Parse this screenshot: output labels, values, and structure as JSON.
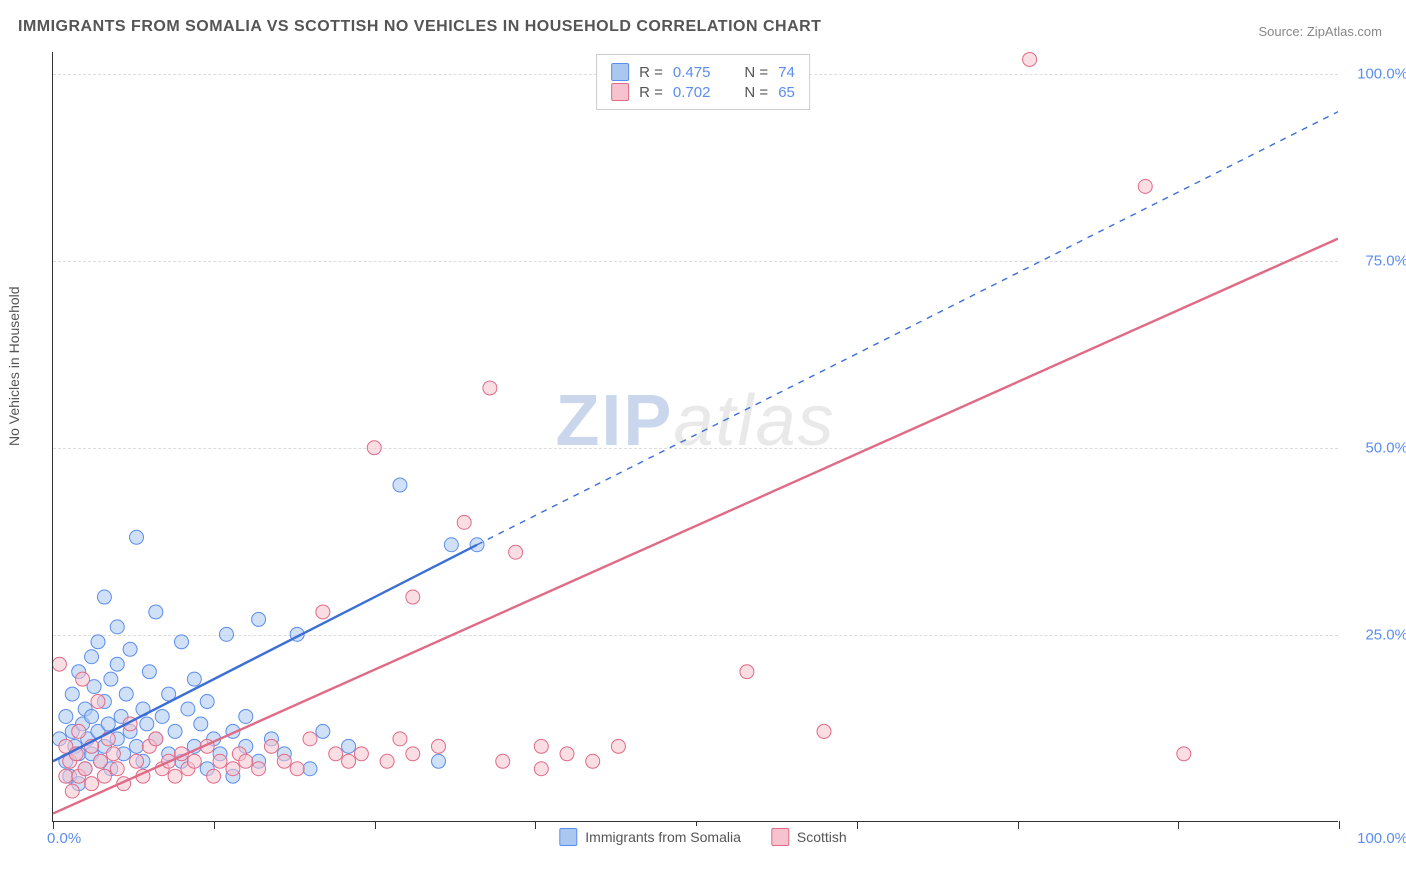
{
  "title": "IMMIGRANTS FROM SOMALIA VS SCOTTISH NO VEHICLES IN HOUSEHOLD CORRELATION CHART",
  "source_prefix": "Source: ",
  "source_name": "ZipAtlas.com",
  "ylabel": "No Vehicles in Household",
  "watermark_a": "ZIP",
  "watermark_b": "atlas",
  "chart": {
    "type": "scatter",
    "xlim": [
      0,
      100
    ],
    "ylim": [
      0,
      103
    ],
    "xticks": [
      0,
      12.5,
      25,
      37.5,
      50,
      62.5,
      75,
      87.5,
      100
    ],
    "x_tick_labels_shown": {
      "0": "0.0%",
      "100": "100.0%"
    },
    "ygrid": [
      25,
      50,
      75,
      100
    ],
    "y_tick_labels": {
      "25": "25.0%",
      "50": "50.0%",
      "75": "75.0%",
      "100": "100.0%"
    },
    "background_color": "#ffffff",
    "grid_color": "#dddddd",
    "axis_color": "#333333",
    "tick_label_color": "#5b8def",
    "label_color": "#555555",
    "marker_radius": 7,
    "marker_opacity": 0.55,
    "line_width": 2.4,
    "series": [
      {
        "id": "somalia",
        "label": "Immigrants from Somalia",
        "fill_color": "#a9c7ef",
        "stroke_color": "#5b8def",
        "line_color": "#3b6fd6",
        "R": "0.475",
        "N": "74",
        "trend": {
          "x1": 0,
          "y1": 8,
          "x2": 33,
          "y2": 37,
          "dash_x2": 100,
          "dash_y2": 95
        },
        "points": [
          [
            0.5,
            11
          ],
          [
            1,
            8
          ],
          [
            1,
            14
          ],
          [
            1.3,
            6
          ],
          [
            1.5,
            12
          ],
          [
            1.5,
            17
          ],
          [
            1.7,
            10
          ],
          [
            2,
            9
          ],
          [
            2,
            20
          ],
          [
            2,
            5
          ],
          [
            2.3,
            13
          ],
          [
            2.5,
            15
          ],
          [
            2.5,
            7
          ],
          [
            2.7,
            11
          ],
          [
            3,
            22
          ],
          [
            3,
            14
          ],
          [
            3,
            9
          ],
          [
            3.2,
            18
          ],
          [
            3.5,
            12
          ],
          [
            3.5,
            24
          ],
          [
            3.7,
            8
          ],
          [
            4,
            30
          ],
          [
            4,
            10
          ],
          [
            4,
            16
          ],
          [
            4.3,
            13
          ],
          [
            4.5,
            19
          ],
          [
            4.5,
            7
          ],
          [
            5,
            21
          ],
          [
            5,
            26
          ],
          [
            5,
            11
          ],
          [
            5.3,
            14
          ],
          [
            5.5,
            9
          ],
          [
            5.7,
            17
          ],
          [
            6,
            12
          ],
          [
            6,
            23
          ],
          [
            6.5,
            38
          ],
          [
            6.5,
            10
          ],
          [
            7,
            15
          ],
          [
            7,
            8
          ],
          [
            7.3,
            13
          ],
          [
            7.5,
            20
          ],
          [
            8,
            11
          ],
          [
            8,
            28
          ],
          [
            8.5,
            14
          ],
          [
            9,
            9
          ],
          [
            9,
            17
          ],
          [
            9.5,
            12
          ],
          [
            10,
            24
          ],
          [
            10,
            8
          ],
          [
            10.5,
            15
          ],
          [
            11,
            10
          ],
          [
            11,
            19
          ],
          [
            11.5,
            13
          ],
          [
            12,
            7
          ],
          [
            12,
            16
          ],
          [
            12.5,
            11
          ],
          [
            13,
            9
          ],
          [
            13.5,
            25
          ],
          [
            14,
            12
          ],
          [
            14,
            6
          ],
          [
            15,
            10
          ],
          [
            15,
            14
          ],
          [
            16,
            8
          ],
          [
            16,
            27
          ],
          [
            17,
            11
          ],
          [
            18,
            9
          ],
          [
            19,
            25
          ],
          [
            20,
            7
          ],
          [
            21,
            12
          ],
          [
            23,
            10
          ],
          [
            27,
            45
          ],
          [
            30,
            8
          ],
          [
            31,
            37
          ],
          [
            33,
            37
          ]
        ]
      },
      {
        "id": "scottish",
        "label": "Scottish",
        "fill_color": "#f5c2cd",
        "stroke_color": "#e06b87",
        "line_color": "#e06b87",
        "R": "0.702",
        "N": "65",
        "trend": {
          "x1": 0,
          "y1": 1,
          "x2": 100,
          "y2": 78
        },
        "points": [
          [
            0.5,
            21
          ],
          [
            1,
            6
          ],
          [
            1,
            10
          ],
          [
            1.3,
            8
          ],
          [
            1.5,
            4
          ],
          [
            1.8,
            9
          ],
          [
            2,
            6
          ],
          [
            2,
            12
          ],
          [
            2.3,
            19
          ],
          [
            2.5,
            7
          ],
          [
            3,
            5
          ],
          [
            3,
            10
          ],
          [
            3.5,
            16
          ],
          [
            3.7,
            8
          ],
          [
            4,
            6
          ],
          [
            4.3,
            11
          ],
          [
            4.7,
            9
          ],
          [
            5,
            7
          ],
          [
            5.5,
            5
          ],
          [
            6,
            13
          ],
          [
            6.5,
            8
          ],
          [
            7,
            6
          ],
          [
            7.5,
            10
          ],
          [
            8,
            11
          ],
          [
            8.5,
            7
          ],
          [
            9,
            8
          ],
          [
            9.5,
            6
          ],
          [
            10,
            9
          ],
          [
            10.5,
            7
          ],
          [
            11,
            8
          ],
          [
            12,
            10
          ],
          [
            12.5,
            6
          ],
          [
            13,
            8
          ],
          [
            14,
            7
          ],
          [
            14.5,
            9
          ],
          [
            15,
            8
          ],
          [
            16,
            7
          ],
          [
            17,
            10
          ],
          [
            18,
            8
          ],
          [
            19,
            7
          ],
          [
            20,
            11
          ],
          [
            21,
            28
          ],
          [
            22,
            9
          ],
          [
            23,
            8
          ],
          [
            24,
            9
          ],
          [
            25,
            50
          ],
          [
            26,
            8
          ],
          [
            27,
            11
          ],
          [
            28,
            9
          ],
          [
            28,
            30
          ],
          [
            30,
            10
          ],
          [
            32,
            40
          ],
          [
            34,
            58
          ],
          [
            35,
            8
          ],
          [
            36,
            36
          ],
          [
            38,
            10
          ],
          [
            38,
            7
          ],
          [
            40,
            9
          ],
          [
            42,
            8
          ],
          [
            44,
            10
          ],
          [
            54,
            20
          ],
          [
            60,
            12
          ],
          [
            85,
            85
          ],
          [
            88,
            9
          ],
          [
            76,
            102
          ]
        ]
      }
    ]
  },
  "legend_labels": {
    "R_prefix": "R = ",
    "N_prefix": "N = "
  }
}
